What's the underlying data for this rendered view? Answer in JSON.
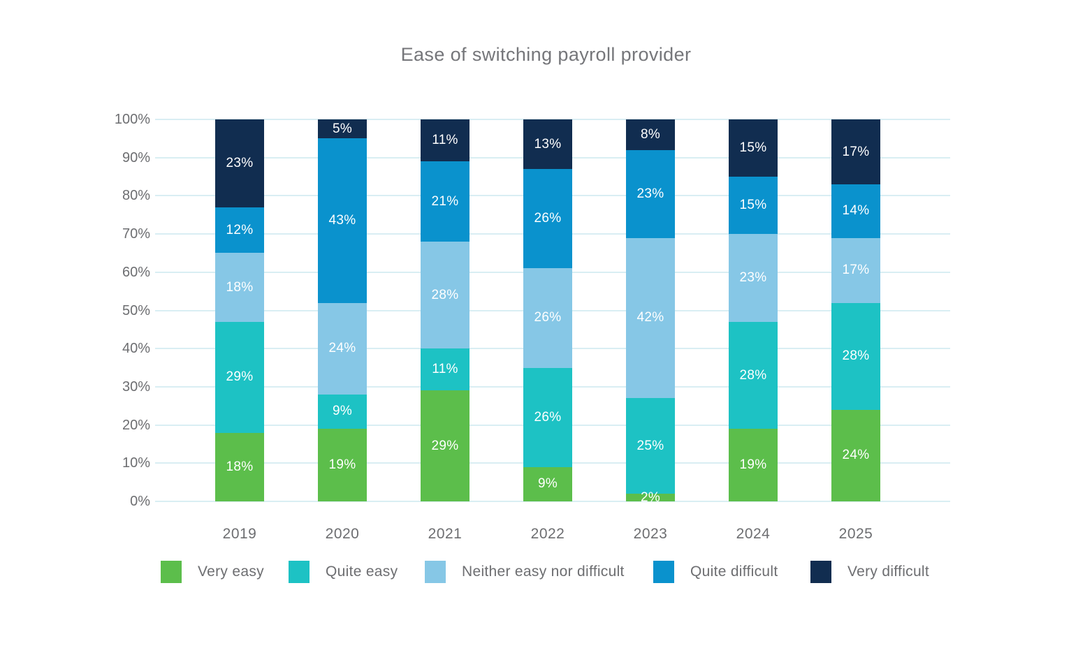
{
  "title": "Ease of switching payroll provider",
  "chart_data": {
    "type": "bar",
    "stacked": true,
    "stacked_100_percent": true,
    "title": "Ease of switching payroll provider",
    "categories": [
      "2019",
      "2020",
      "2021",
      "2022",
      "2023",
      "2024",
      "2025"
    ],
    "series": [
      {
        "name": "Very easy",
        "color": "#5cbe4b",
        "values": [
          18,
          19,
          29,
          9,
          2,
          19,
          24
        ]
      },
      {
        "name": "Quite easy",
        "color": "#1dc2c4",
        "values": [
          29,
          9,
          11,
          26,
          25,
          28,
          28
        ]
      },
      {
        "name": "Neither easy nor difficult",
        "color": "#86c7e6",
        "values": [
          18,
          24,
          28,
          26,
          42,
          23,
          17
        ]
      },
      {
        "name": "Quite difficult",
        "color": "#0a92cd",
        "values": [
          12,
          43,
          21,
          26,
          23,
          15,
          14
        ]
      },
      {
        "name": "Very difficult",
        "color": "#112d50",
        "values": [
          23,
          5,
          11,
          13,
          8,
          15,
          17
        ]
      }
    ],
    "xlabel": "",
    "ylabel": "",
    "y_ticks": [
      "100%",
      "90%",
      "80%",
      "70%",
      "60%",
      "50%",
      "40%",
      "30%",
      "20%",
      "10%",
      "0%"
    ],
    "ylim": [
      0,
      100
    ],
    "grid": true,
    "gridline_color": "#d9eef3",
    "data_label_format": "{value}%",
    "data_label_color": "#ffffff",
    "legend_position": "bottom",
    "legend_items": [
      "Very easy",
      "Quite easy",
      "Neither easy nor difficult",
      "Quite difficult",
      "Very difficult"
    ]
  }
}
